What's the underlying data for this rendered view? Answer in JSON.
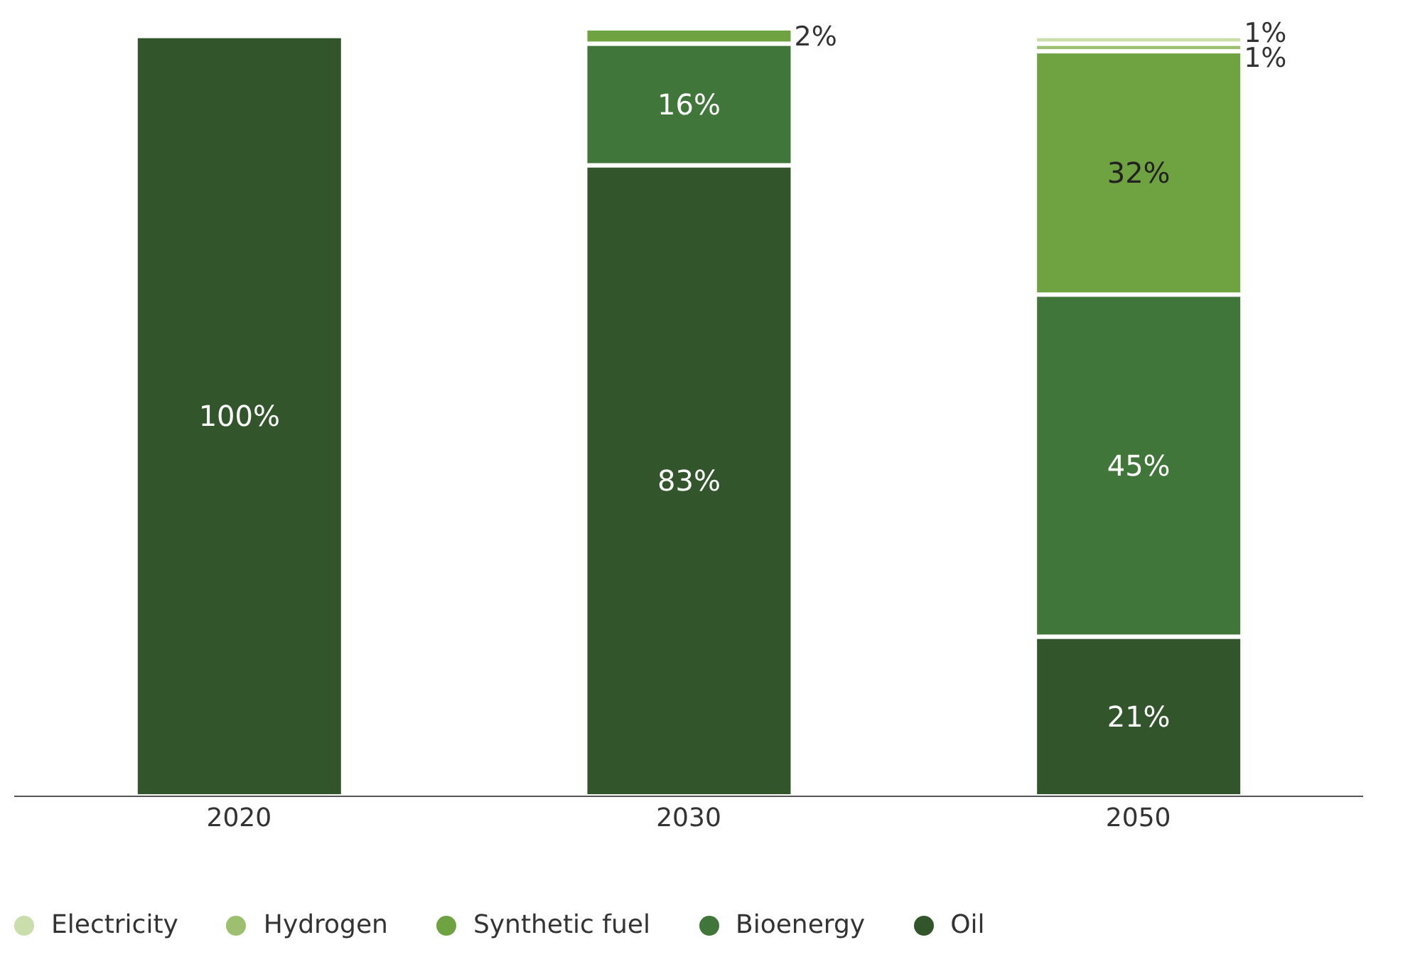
{
  "chart_data": {
    "type": "bar",
    "stacked": true,
    "categories": [
      "2020",
      "2030",
      "2050"
    ],
    "legend": "bottom",
    "series": [
      {
        "name": "Oil",
        "color": "#33552b",
        "values": [
          100,
          83,
          21
        ],
        "value_labels": [
          "100%",
          "83%",
          "21%"
        ]
      },
      {
        "name": "Bioenergy",
        "color": "#41763a",
        "values": [
          null,
          16,
          45
        ],
        "value_labels": [
          null,
          "16%",
          "45%"
        ]
      },
      {
        "name": "Synthetic fuel",
        "color": "#6fa241",
        "values": [
          null,
          2,
          32
        ],
        "value_labels": [
          null,
          "2%",
          "32%"
        ]
      },
      {
        "name": "Hydrogen",
        "color": "#9cc06f",
        "values": [
          null,
          null,
          1
        ],
        "value_labels": [
          null,
          null,
          "1%"
        ]
      },
      {
        "name": "Electricity",
        "color": "#c9deaa",
        "values": [
          null,
          null,
          1
        ],
        "value_labels": [
          null,
          null,
          "1%"
        ]
      }
    ]
  }
}
